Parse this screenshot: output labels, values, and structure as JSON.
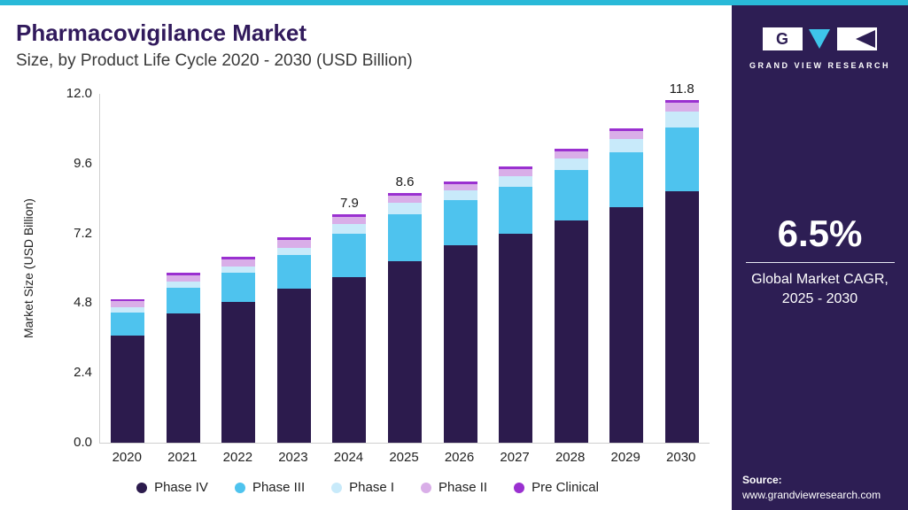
{
  "header": {
    "title": "Pharmacovigilance Market",
    "subtitle": "Size, by Product Life Cycle 2020 - 2030 (USD Billion)"
  },
  "chart_data": {
    "type": "bar",
    "stacked": true,
    "title": "Pharmacovigilance Market Size, by Product Life Cycle 2020 - 2030 (USD Billion)",
    "xlabel": "",
    "ylabel": "Market Size (USD Billion)",
    "ylim": [
      0,
      12.0
    ],
    "y_ticks": [
      0.0,
      2.4,
      4.8,
      7.2,
      9.6,
      12.0
    ],
    "grid": false,
    "legend_position": "bottom",
    "categories": [
      "2020",
      "2021",
      "2022",
      "2023",
      "2024",
      "2025",
      "2026",
      "2027",
      "2028",
      "2029",
      "2030"
    ],
    "series": [
      {
        "name": "Phase IV",
        "color": "#2c1b4d",
        "values": [
          3.7,
          4.45,
          4.85,
          5.3,
          5.7,
          6.25,
          6.8,
          7.2,
          7.65,
          8.1,
          8.65
        ]
      },
      {
        "name": "Phase III",
        "color": "#4ec3ee",
        "values": [
          0.8,
          0.88,
          1.0,
          1.15,
          1.5,
          1.6,
          1.55,
          1.6,
          1.75,
          1.9,
          2.2
        ]
      },
      {
        "name": "Phase I",
        "color": "#c8eafa",
        "values": [
          0.18,
          0.2,
          0.22,
          0.25,
          0.35,
          0.4,
          0.35,
          0.38,
          0.4,
          0.45,
          0.55
        ]
      },
      {
        "name": "Phase II",
        "color": "#d9aee8",
        "values": [
          0.2,
          0.22,
          0.25,
          0.26,
          0.25,
          0.25,
          0.22,
          0.24,
          0.25,
          0.28,
          0.3
        ]
      },
      {
        "name": "Pre Clinical",
        "color": "#9a30d0",
        "values": [
          0.07,
          0.08,
          0.08,
          0.09,
          0.1,
          0.1,
          0.08,
          0.08,
          0.1,
          0.1,
          0.1
        ]
      }
    ],
    "total_labels": {
      "2024": "7.9",
      "2025": "8.6",
      "2030": "11.8"
    }
  },
  "sidebar": {
    "logo_text": "GRAND VIEW RESEARCH",
    "cagr_value": "6.5%",
    "cagr_label_line1": "Global Market CAGR,",
    "cagr_label_line2": "2025 - 2030",
    "source_label": "Source:",
    "source_url": "www.grandviewresearch.com"
  }
}
